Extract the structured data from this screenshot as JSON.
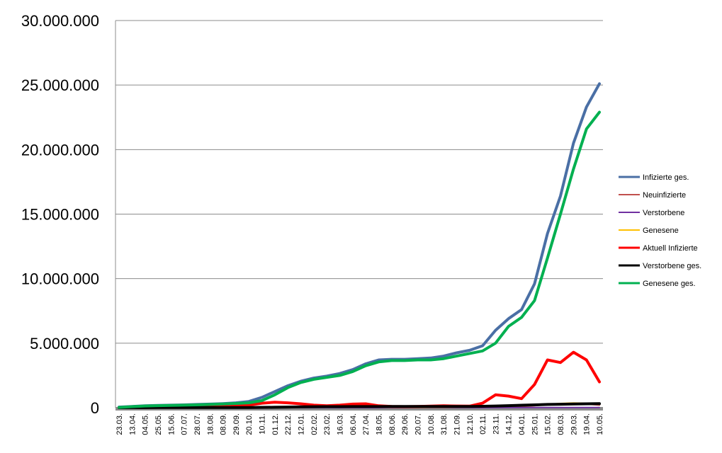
{
  "chart_data": {
    "type": "line",
    "title": "",
    "xlabel": "",
    "ylabel": "",
    "ylim": [
      0,
      30000000
    ],
    "y_ticks": [
      {
        "value": 0,
        "label": "0"
      },
      {
        "value": 5000000,
        "label": "5.000.000"
      },
      {
        "value": 10000000,
        "label": "10.000.000"
      },
      {
        "value": 15000000,
        "label": "15.000.000"
      },
      {
        "value": 20000000,
        "label": "20.000.000"
      },
      {
        "value": 25000000,
        "label": "25.000.000"
      },
      {
        "value": 30000000,
        "label": "30.000.000"
      }
    ],
    "grid": true,
    "legend_position": "right",
    "categories": [
      "23.03.",
      "13.04.",
      "04.05.",
      "25.05.",
      "15.06.",
      "07.07.",
      "28.07.",
      "18.08.",
      "08.09.",
      "29.09.",
      "20.10.",
      "10.11.",
      "01.12.",
      "22.12.",
      "12.01.",
      "02.02.",
      "23.02.",
      "16.03.",
      "06.04.",
      "27.04.",
      "18.05.",
      "08.06.",
      "29.06.",
      "20.07.",
      "10.08.",
      "31.08.",
      "21.09.",
      "12.10.",
      "02.11.",
      "23.11.",
      "14.12.",
      "04.01.",
      "25.01.",
      "15.02.",
      "08.03.",
      "29.03.",
      "19.04.",
      "10.05."
    ],
    "series": [
      {
        "name": "Infizierte ges.",
        "color": "#4a6fa5",
        "width": 4,
        "values": [
          50000,
          100000,
          150000,
          180000,
          200000,
          220000,
          250000,
          280000,
          320000,
          380000,
          480000,
          800000,
          1250000,
          1700000,
          2050000,
          2300000,
          2450000,
          2650000,
          2950000,
          3400000,
          3700000,
          3750000,
          3750000,
          3800000,
          3850000,
          4000000,
          4250000,
          4450000,
          4800000,
          6000000,
          6900000,
          7600000,
          9600000,
          13500000,
          16400000,
          20500000,
          23300000,
          25100000
        ]
      },
      {
        "name": "Neuinfizierte",
        "color": "#c0504d",
        "width": 2,
        "values": [
          10000,
          8000,
          5000,
          3000,
          3000,
          5000,
          8000,
          10000,
          15000,
          25000,
          40000,
          70000,
          90000,
          80000,
          60000,
          40000,
          30000,
          35000,
          50000,
          60000,
          40000,
          20000,
          15000,
          15000,
          20000,
          30000,
          40000,
          60000,
          100000,
          150000,
          120000,
          100000,
          150000,
          250000,
          300000,
          350000,
          280000,
          200000
        ]
      },
      {
        "name": "Verstorbene",
        "color": "#7030a0",
        "width": 2,
        "values": [
          1000,
          3000,
          2000,
          1000,
          500,
          300,
          300,
          300,
          500,
          1000,
          2000,
          4000,
          6000,
          7000,
          6000,
          4000,
          3000,
          2500,
          2500,
          2500,
          2000,
          1500,
          1000,
          1000,
          1000,
          1500,
          2000,
          3000,
          5000,
          8000,
          10000,
          10000,
          12000,
          14000,
          15000,
          15000,
          12000,
          10000
        ]
      },
      {
        "name": "Genesene",
        "color": "#ffc000",
        "width": 2,
        "values": [
          5000,
          20000,
          30000,
          20000,
          10000,
          8000,
          8000,
          10000,
          15000,
          25000,
          40000,
          60000,
          80000,
          90000,
          70000,
          50000,
          40000,
          40000,
          50000,
          60000,
          50000,
          30000,
          20000,
          20000,
          25000,
          30000,
          40000,
          50000,
          80000,
          120000,
          150000,
          150000,
          180000,
          260000,
          330000,
          360000,
          340000,
          300000
        ]
      },
      {
        "name": "Aktuell Infizierte",
        "color": "#ff0000",
        "width": 4,
        "values": [
          30000,
          60000,
          40000,
          30000,
          30000,
          30000,
          40000,
          60000,
          80000,
          120000,
          200000,
          350000,
          420000,
          380000,
          300000,
          200000,
          150000,
          200000,
          280000,
          300000,
          150000,
          100000,
          80000,
          100000,
          120000,
          150000,
          130000,
          120000,
          350000,
          1000000,
          900000,
          700000,
          1800000,
          3700000,
          3500000,
          4300000,
          3700000,
          2000000
        ]
      },
      {
        "name": "Verstorbene ges.",
        "color": "#000000",
        "width": 4,
        "values": [
          2000,
          5000,
          8000,
          10000,
          11000,
          12000,
          13000,
          14000,
          15000,
          16000,
          18000,
          25000,
          35000,
          50000,
          65000,
          75000,
          80000,
          83000,
          86000,
          88000,
          90000,
          91000,
          92000,
          93000,
          94000,
          96000,
          98000,
          100000,
          110000,
          130000,
          160000,
          190000,
          220000,
          250000,
          270000,
          290000,
          300000,
          310000
        ]
      },
      {
        "name": "Genesene ges.",
        "color": "#00b050",
        "width": 4,
        "values": [
          20000,
          80000,
          130000,
          160000,
          180000,
          200000,
          220000,
          250000,
          290000,
          330000,
          380000,
          550000,
          1000000,
          1550000,
          1950000,
          2200000,
          2350000,
          2500000,
          2800000,
          3250000,
          3550000,
          3650000,
          3650000,
          3700000,
          3700000,
          3800000,
          4000000,
          4200000,
          4400000,
          5000000,
          6300000,
          7000000,
          8300000,
          11600000,
          15000000,
          18500000,
          21600000,
          22900000
        ]
      }
    ]
  }
}
